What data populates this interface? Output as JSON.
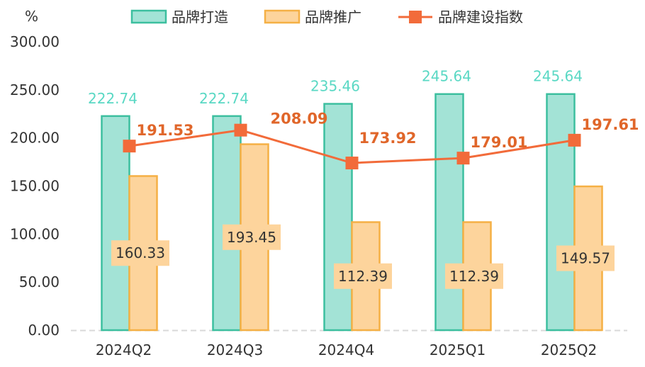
{
  "chart_data": {
    "type": "bar",
    "unit": "%",
    "categories": [
      "2024Q2",
      "2024Q3",
      "2024Q4",
      "2025Q1",
      "2025Q2"
    ],
    "ylim": [
      0,
      300
    ],
    "yticks": [
      0,
      50,
      100,
      150,
      200,
      250,
      300
    ],
    "ytick_labels": [
      "0.00",
      "50.00",
      "100.00",
      "150.00",
      "200.00",
      "250.00",
      "300.00"
    ],
    "legend_position": "top",
    "series": [
      {
        "name": "品牌打造",
        "type": "bar",
        "values": [
          222.74,
          222.74,
          235.46,
          245.64,
          245.64
        ],
        "labels": [
          "222.74",
          "222.74",
          "235.46",
          "245.64",
          "245.64"
        ],
        "fill": "#a3e3d6",
        "stroke": "#3cbf9f"
      },
      {
        "name": "品牌推广",
        "type": "bar",
        "values": [
          160.33,
          193.45,
          112.39,
          112.39,
          149.57
        ],
        "labels": [
          "160.33",
          "193.45",
          "112.39",
          "112.39",
          "149.57"
        ],
        "fill": "#fdd49c",
        "stroke": "#f5b045"
      },
      {
        "name": "品牌建设指数",
        "type": "line",
        "values": [
          191.53,
          208.09,
          173.92,
          179.01,
          197.61
        ],
        "labels": [
          "191.53",
          "208.09",
          "173.92",
          "179.01",
          "197.61"
        ],
        "color": "#f26b3a"
      }
    ]
  }
}
